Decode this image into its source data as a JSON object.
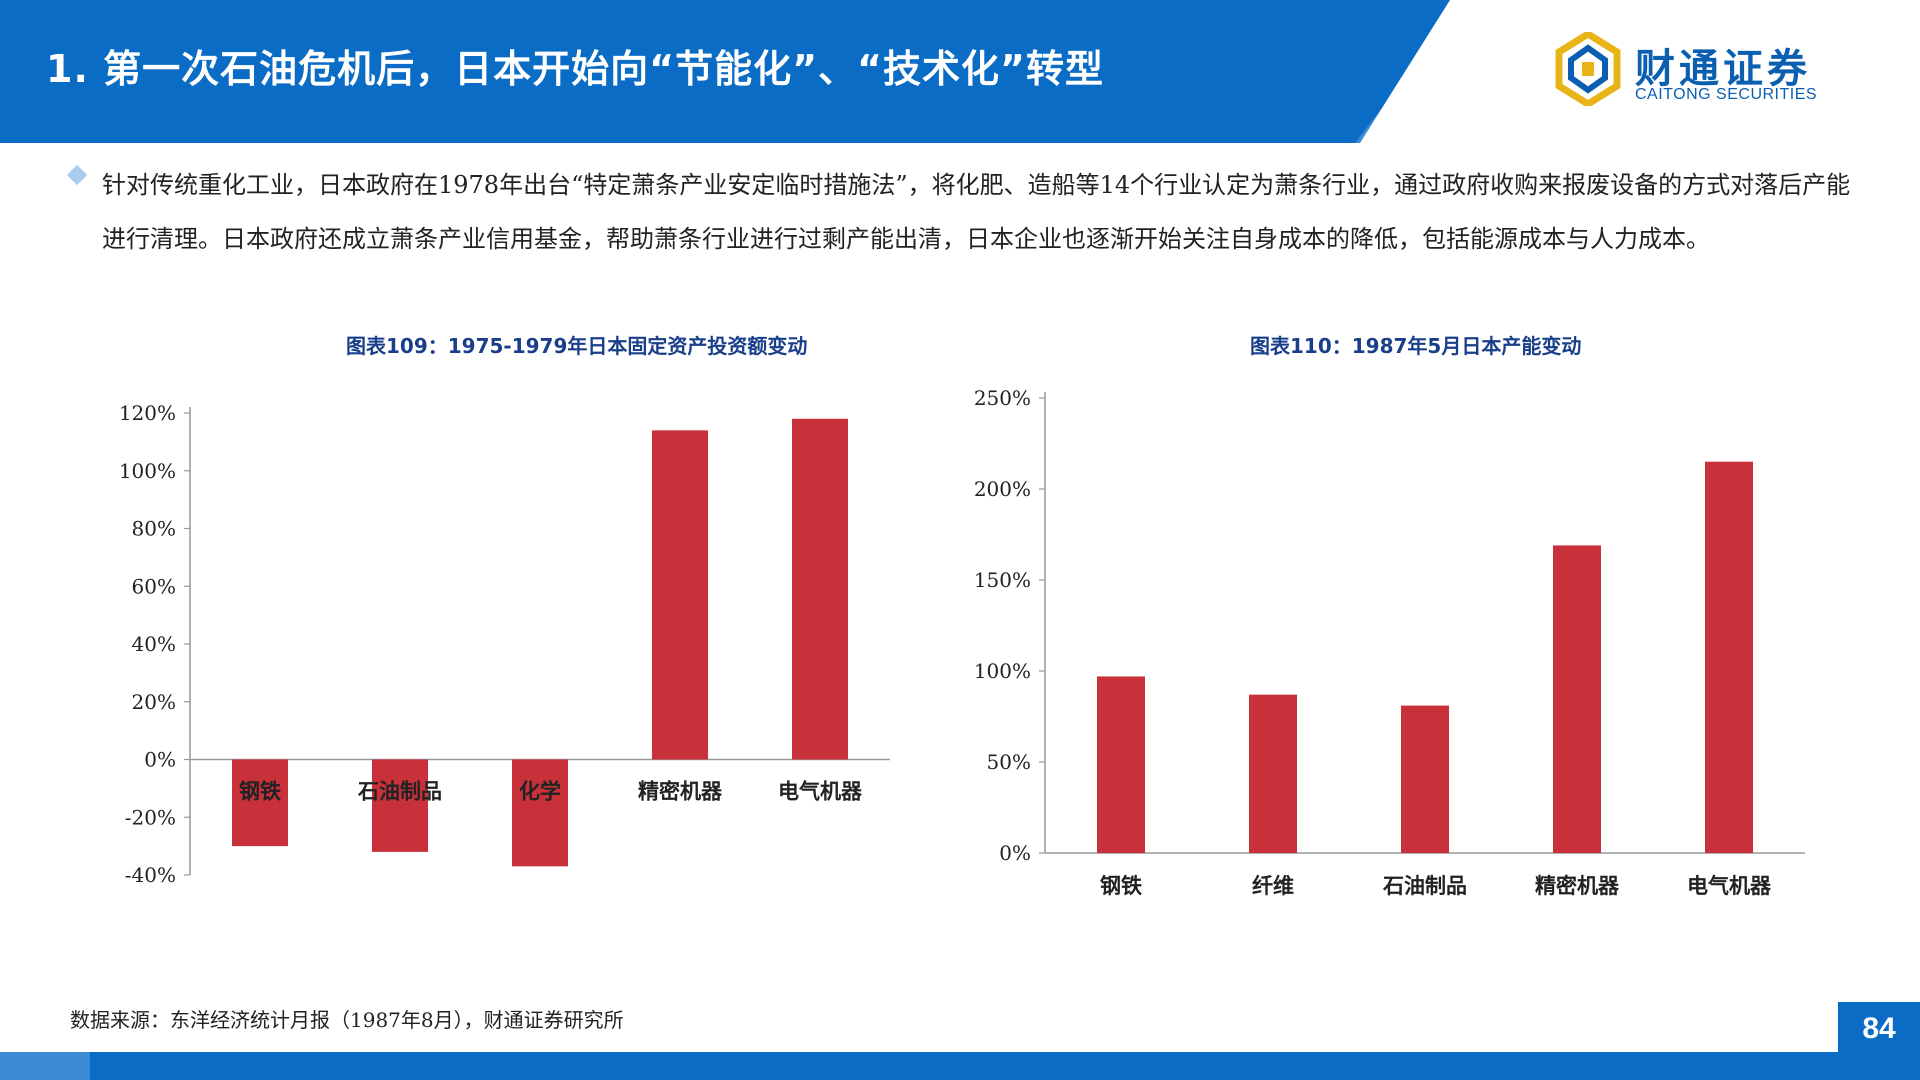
{
  "header": {
    "title": "1. 第一次石油危机后，日本开始向“节能化”、“技术化”转型",
    "logo_cn": "财通证券",
    "logo_en": "CAITONG SECURITIES"
  },
  "bullet": {
    "text": "针对传统重化工业，日本政府在1978年出台“特定萧条产业安定临时措施法”，将化肥、造船等14个行业认定为萧条行业，通过政府收购来报废设备的方式对落后产能进行清理。日本政府还成立萧条产业信用基金，帮助萧条行业进行过剩产能出清，日本企业也逐渐开始关注自身成本的降低，包括能源成本与人力成本。"
  },
  "chart_data": [
    {
      "type": "bar",
      "title": "图表109：1975-1979年日本固定资产投资额变动",
      "categories": [
        "钢铁",
        "石油制品",
        "化学",
        "精密机器",
        "电气机器"
      ],
      "values": [
        -30,
        -32,
        -37,
        114,
        118
      ],
      "ylim": [
        -40,
        120
      ],
      "yticks": [
        "120%",
        "100%",
        "80%",
        "60%",
        "40%",
        "20%",
        "0%",
        "-20%",
        "-40%"
      ],
      "grid": false,
      "color": "#c8303a"
    },
    {
      "type": "bar",
      "title": "图表110：1987年5月日本产能变动",
      "categories": [
        "钢铁",
        "纤维",
        "石油制品",
        "精密机器",
        "电气机器"
      ],
      "values": [
        97,
        87,
        81,
        169,
        215
      ],
      "ylim": [
        0,
        250
      ],
      "yticks": [
        "250%",
        "200%",
        "150%",
        "100%",
        "50%",
        "0%"
      ],
      "grid": false,
      "color": "#c8303a"
    }
  ],
  "footer": {
    "source": "数据来源：东洋经济统计月报（1987年8月），财通证券研究所",
    "page": "84"
  },
  "colors": {
    "brand_blue": "#0a6cc4",
    "bar_red": "#c8303a",
    "chart_title": "#1a3f8a"
  }
}
